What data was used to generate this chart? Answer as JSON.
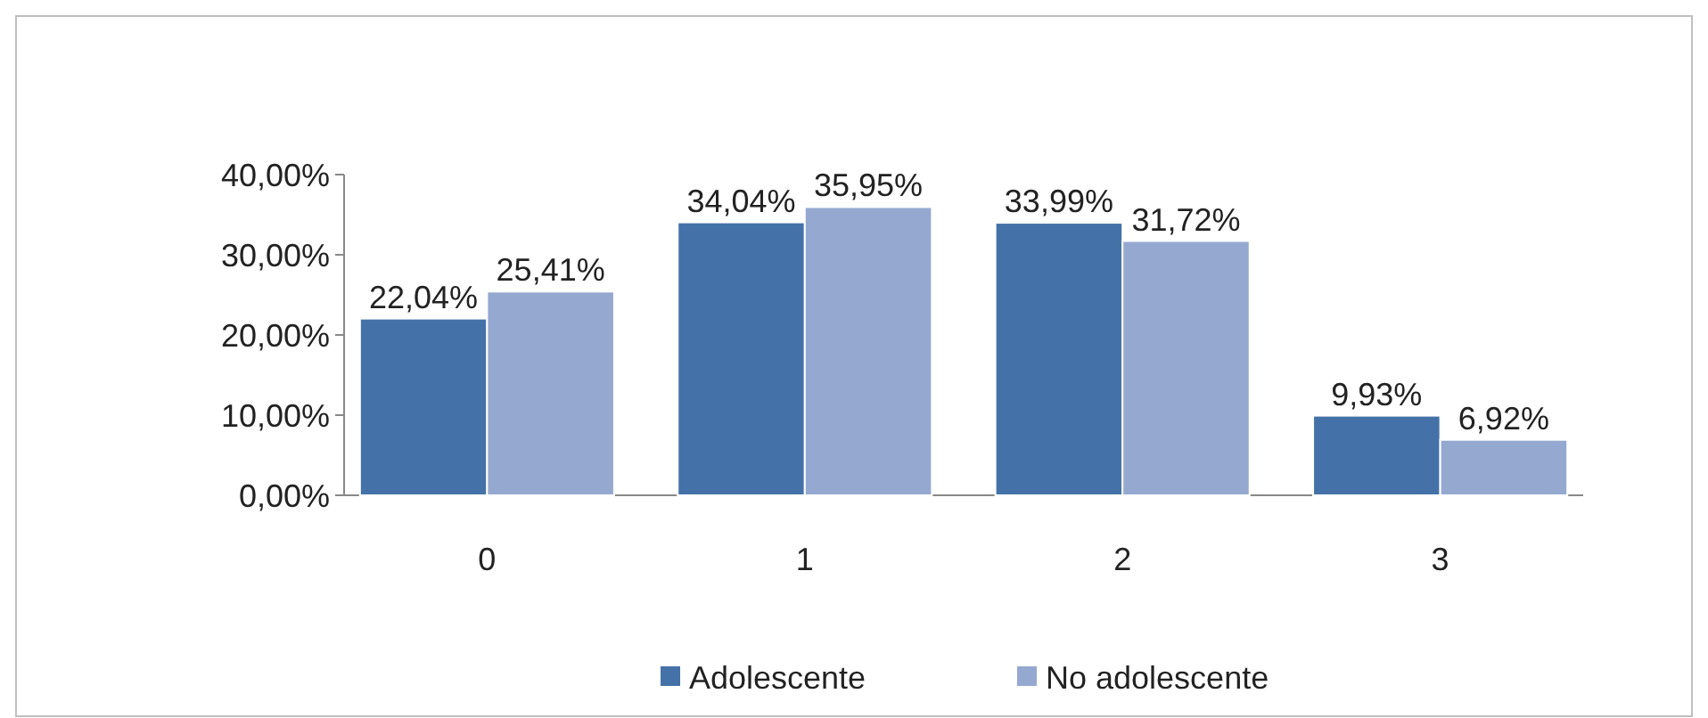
{
  "chart_data": {
    "type": "bar",
    "categories": [
      "0",
      "1",
      "2",
      "3"
    ],
    "series": [
      {
        "name": "Adolescente",
        "color": "#4472a8",
        "values": [
          22.04,
          34.04,
          33.99,
          9.93
        ],
        "value_labels": [
          "22,04%",
          "34,04%",
          "33,99%",
          "9,93%"
        ]
      },
      {
        "name": "No adolescente",
        "color": "#95a9d0",
        "values": [
          25.41,
          35.95,
          31.72,
          6.92
        ],
        "value_labels": [
          "25,41%",
          "35,95%",
          "31,72%",
          "6,92%"
        ]
      }
    ],
    "ylim": [
      0,
      40
    ],
    "yticks": [
      {
        "value": 0,
        "label": "0,00%"
      },
      {
        "value": 10,
        "label": "10,00%"
      },
      {
        "value": 20,
        "label": "20,00%"
      },
      {
        "value": 30,
        "label": "30,00%"
      },
      {
        "value": 40,
        "label": "40,00%"
      }
    ],
    "grid": false,
    "legend": "bottom"
  }
}
